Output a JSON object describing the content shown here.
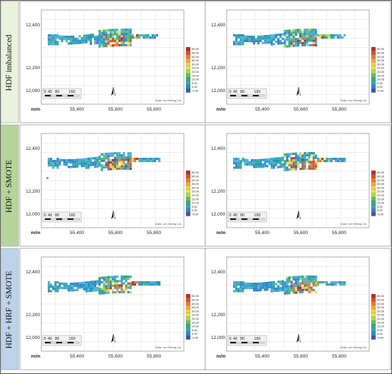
{
  "rows": [
    {
      "label": "HDF imbalanced",
      "label_bg": "#e8f2dd"
    },
    {
      "label": "HDF + SMOTE",
      "label_bg": "#b7d59a"
    },
    {
      "label": "HDF + HRF + SMOTE",
      "label_bg": "#bcd3ea"
    }
  ],
  "axis": {
    "y_ticks": [
      "12,400",
      "12,200",
      "12,000"
    ],
    "x_ticks": [
      "55,400",
      "55,600",
      "55,800"
    ],
    "x_unit": "m/m"
  },
  "scalebar": {
    "labels": [
      "0",
      "40",
      "80",
      "160"
    ]
  },
  "legend": {
    "values": [
      "50.00",
      "45.00",
      "40.00",
      "35.00",
      "30.00",
      "25.00",
      "20.00",
      "15.00",
      "10.00",
      "5.00",
      "0.00",
      "-5.00"
    ],
    "colors": [
      "#c0272d",
      "#e8481c",
      "#f0792a",
      "#f7a533",
      "#fbd13f",
      "#e6e84a",
      "#a8dc4a",
      "#5cc455",
      "#2eb07a",
      "#29a8c2",
      "#2f86cf",
      "#3557b5"
    ]
  },
  "credit": "Data: xxx Mining Ltd."
}
